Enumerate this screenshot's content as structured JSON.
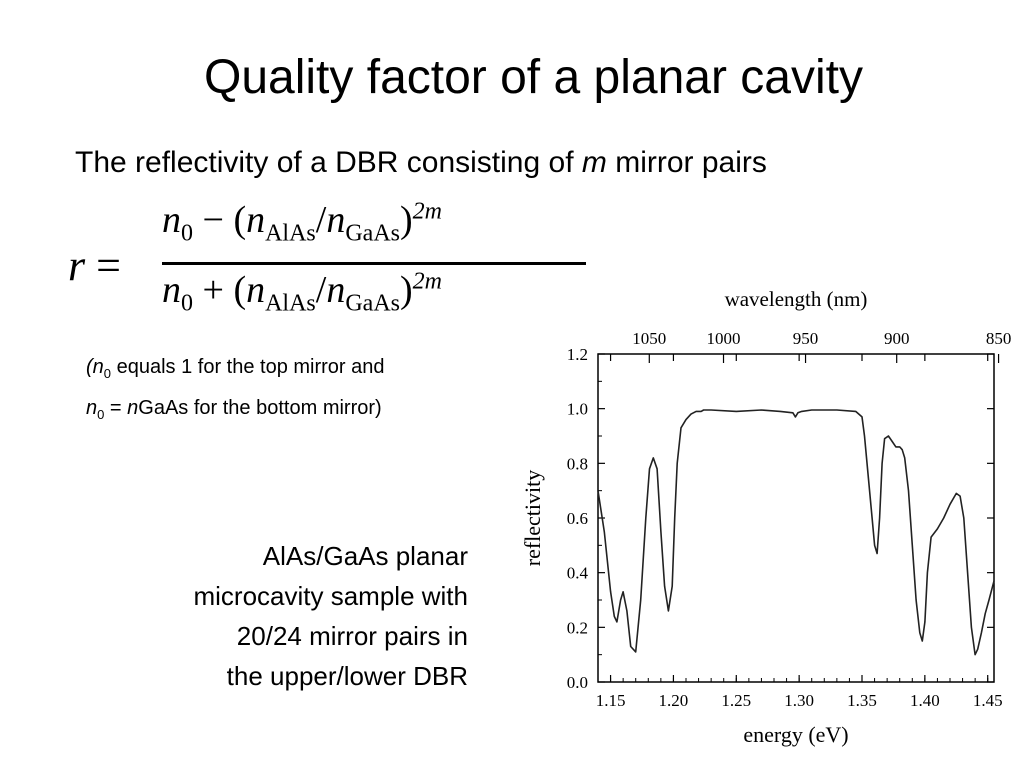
{
  "slide": {
    "title": "Quality factor of a planar cavity",
    "subtitle_pre": "The reflectivity of a DBR consisting of ",
    "subtitle_var": "m",
    "subtitle_post": " mirror pairs",
    "formula": {
      "lhs": "r",
      "equals": "=",
      "n": "n",
      "zero": "0",
      "minus": "−",
      "plus": "+",
      "open": "(",
      "close": ")",
      "slash": "/",
      "alas": "AlAs",
      "gaas": "GaAs",
      "exponent": "2m"
    },
    "note": {
      "open_paren": "(",
      "n": "n",
      "zero": "0",
      "line1_rest": " equals 1 for the top mirror and",
      "line2_eq": " = ",
      "line2_rest": "GaAs for the bottom mirror)"
    },
    "sample_lines": [
      "AlAs/GaAs planar",
      "microcavity sample with",
      "20/24 mirror pairs in",
      "the upper/lower DBR"
    ]
  },
  "chart_data": {
    "type": "line",
    "title": "",
    "xlabel": "energy (eV)",
    "ylabel": "reflectivity",
    "top_axis_label": "wavelength (nm)",
    "xlim": [
      1.14,
      1.455
    ],
    "ylim": [
      0.0,
      1.2
    ],
    "x_ticks": [
      1.15,
      1.2,
      1.25,
      1.3,
      1.35,
      1.4,
      1.45
    ],
    "x_tick_labels": [
      "1.15",
      "1.20",
      "1.25",
      "1.30",
      "1.35",
      "1.40",
      "1.45"
    ],
    "y_ticks": [
      0.0,
      0.2,
      0.4,
      0.6,
      0.8,
      1.0,
      1.2
    ],
    "y_tick_labels": [
      "0.0",
      "0.2",
      "0.4",
      "0.6",
      "0.8",
      "1.0",
      "1.2"
    ],
    "top_ticks_nm": [
      1050,
      1000,
      950,
      900,
      850
    ],
    "top_tick_labels": [
      "1050",
      "1000",
      "950",
      "900",
      "850"
    ],
    "grid": false,
    "series": [
      {
        "x": [
          1.14,
          1.145,
          1.15,
          1.153,
          1.155,
          1.158,
          1.16,
          1.163,
          1.166,
          1.17,
          1.174,
          1.178,
          1.181,
          1.184,
          1.187,
          1.19,
          1.193,
          1.196,
          1.199,
          1.201,
          1.203,
          1.206,
          1.21,
          1.214,
          1.218,
          1.222,
          1.224,
          1.23,
          1.25,
          1.27,
          1.285,
          1.295,
          1.297,
          1.299,
          1.302,
          1.31,
          1.33,
          1.345,
          1.35,
          1.352,
          1.355,
          1.358,
          1.36,
          1.362,
          1.364,
          1.366,
          1.368,
          1.371,
          1.374,
          1.377,
          1.38,
          1.382,
          1.384,
          1.387,
          1.39,
          1.393,
          1.396,
          1.398,
          1.4,
          1.402,
          1.405,
          1.41,
          1.415,
          1.42,
          1.425,
          1.428,
          1.431,
          1.434,
          1.437,
          1.44,
          1.442,
          1.445,
          1.448,
          1.451,
          1.455
        ],
        "y": [
          0.7,
          0.55,
          0.33,
          0.24,
          0.22,
          0.3,
          0.33,
          0.26,
          0.13,
          0.11,
          0.3,
          0.6,
          0.78,
          0.82,
          0.78,
          0.55,
          0.35,
          0.26,
          0.35,
          0.6,
          0.8,
          0.93,
          0.96,
          0.98,
          0.99,
          0.99,
          0.995,
          0.995,
          0.99,
          0.995,
          0.99,
          0.985,
          0.97,
          0.985,
          0.99,
          0.995,
          0.995,
          0.99,
          0.97,
          0.9,
          0.75,
          0.6,
          0.5,
          0.47,
          0.6,
          0.8,
          0.89,
          0.9,
          0.88,
          0.86,
          0.86,
          0.85,
          0.82,
          0.7,
          0.5,
          0.3,
          0.18,
          0.15,
          0.22,
          0.4,
          0.53,
          0.56,
          0.6,
          0.65,
          0.69,
          0.68,
          0.6,
          0.4,
          0.2,
          0.1,
          0.12,
          0.18,
          0.25,
          0.3,
          0.37
        ]
      }
    ]
  }
}
